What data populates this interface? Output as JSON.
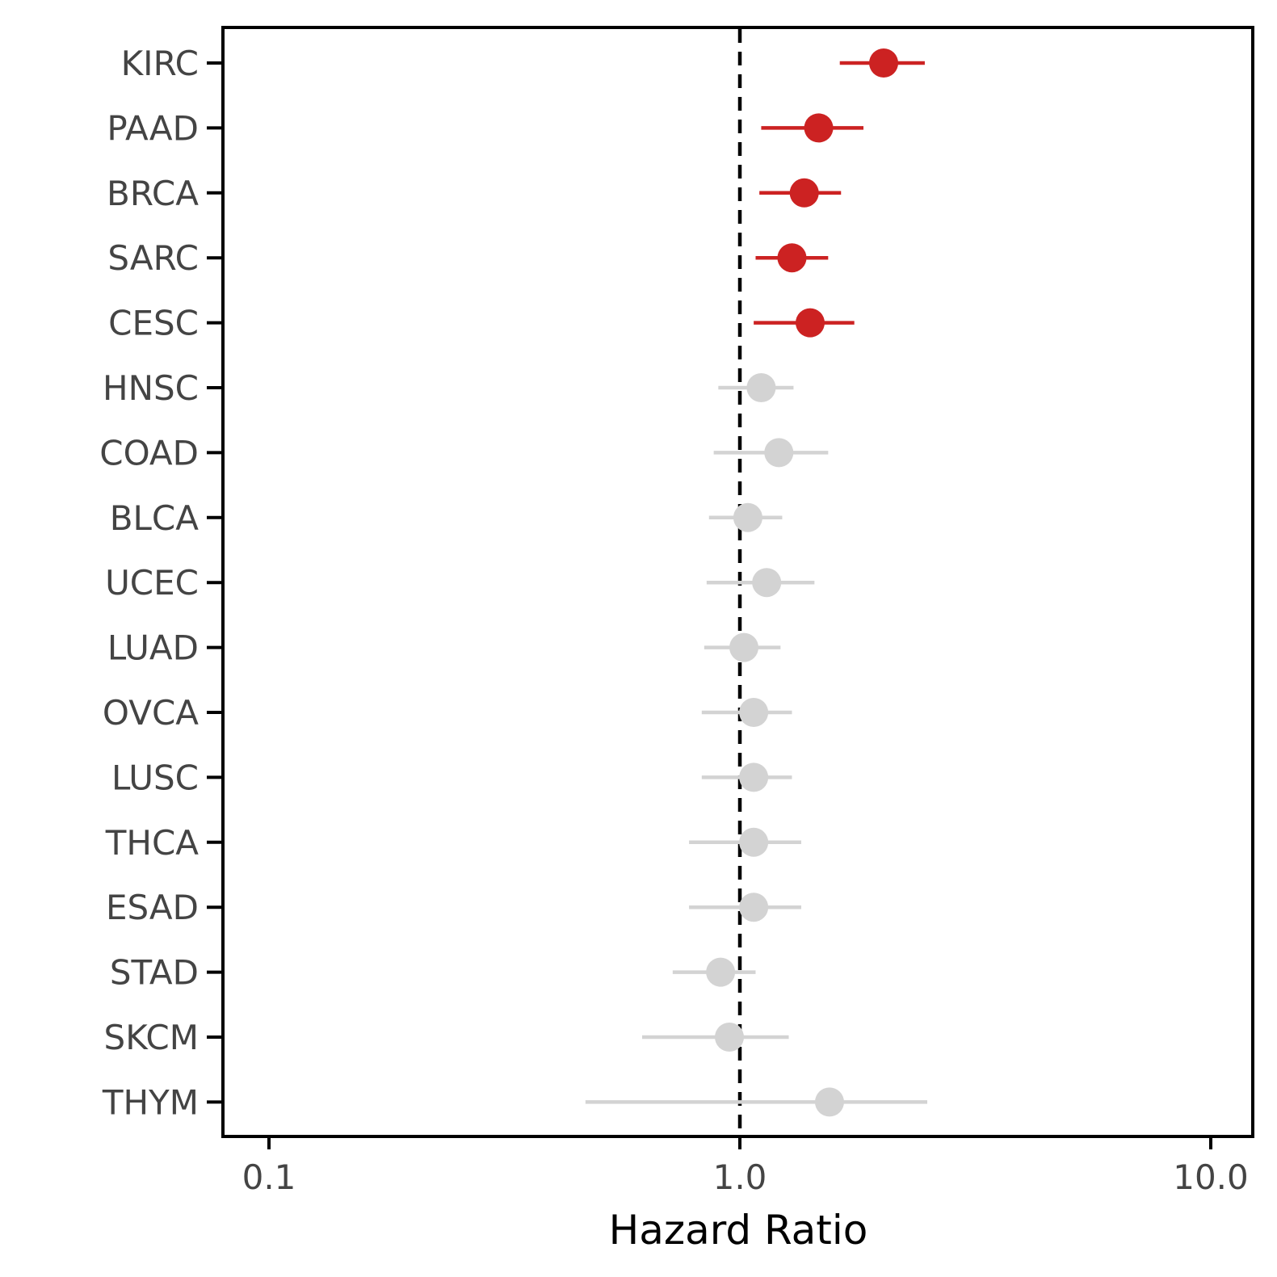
{
  "chart_data": {
    "type": "forest",
    "xlabel": "Hazard Ratio",
    "xscale": "log",
    "xlim": [
      0.082,
      11.2
    ],
    "xticks": [
      0.1,
      1.0,
      10.0
    ],
    "xtick_labels": [
      "0.1",
      "1.0",
      "10.0"
    ],
    "reference_line": 1.0,
    "colors": {
      "significant": "#cc2222",
      "not_significant": "#d3d3d3",
      "axis": "#000000",
      "text": "#444444"
    },
    "rows": [
      {
        "label": "KIRC",
        "hr": 2.02,
        "lower": 1.63,
        "upper": 2.47,
        "significant": true
      },
      {
        "label": "PAAD",
        "hr": 1.47,
        "lower": 1.11,
        "upper": 1.83,
        "significant": true
      },
      {
        "label": "BRCA",
        "hr": 1.37,
        "lower": 1.1,
        "upper": 1.64,
        "significant": true
      },
      {
        "label": "SARC",
        "hr": 1.29,
        "lower": 1.08,
        "upper": 1.54,
        "significant": true
      },
      {
        "label": "CESC",
        "hr": 1.41,
        "lower": 1.07,
        "upper": 1.75,
        "significant": true
      },
      {
        "label": "HNSC",
        "hr": 1.11,
        "lower": 0.9,
        "upper": 1.3,
        "significant": false
      },
      {
        "label": "COAD",
        "hr": 1.21,
        "lower": 0.88,
        "upper": 1.54,
        "significant": false
      },
      {
        "label": "BLCA",
        "hr": 1.04,
        "lower": 0.86,
        "upper": 1.23,
        "significant": false
      },
      {
        "label": "UCEC",
        "hr": 1.14,
        "lower": 0.85,
        "upper": 1.44,
        "significant": false
      },
      {
        "label": "LUAD",
        "hr": 1.02,
        "lower": 0.84,
        "upper": 1.22,
        "significant": false
      },
      {
        "label": "OVCA",
        "hr": 1.07,
        "lower": 0.83,
        "upper": 1.29,
        "significant": false
      },
      {
        "label": "LUSC",
        "hr": 1.07,
        "lower": 0.83,
        "upper": 1.29,
        "significant": false
      },
      {
        "label": "THCA",
        "hr": 1.07,
        "lower": 0.78,
        "upper": 1.35,
        "significant": false
      },
      {
        "label": "ESAD",
        "hr": 1.07,
        "lower": 0.78,
        "upper": 1.35,
        "significant": false
      },
      {
        "label": "STAD",
        "hr": 0.91,
        "lower": 0.72,
        "upper": 1.08,
        "significant": false
      },
      {
        "label": "SKCM",
        "hr": 0.95,
        "lower": 0.62,
        "upper": 1.27,
        "significant": false
      },
      {
        "label": "THYM",
        "hr": 1.55,
        "lower": 0.47,
        "upper": 2.5,
        "significant": false
      }
    ]
  }
}
